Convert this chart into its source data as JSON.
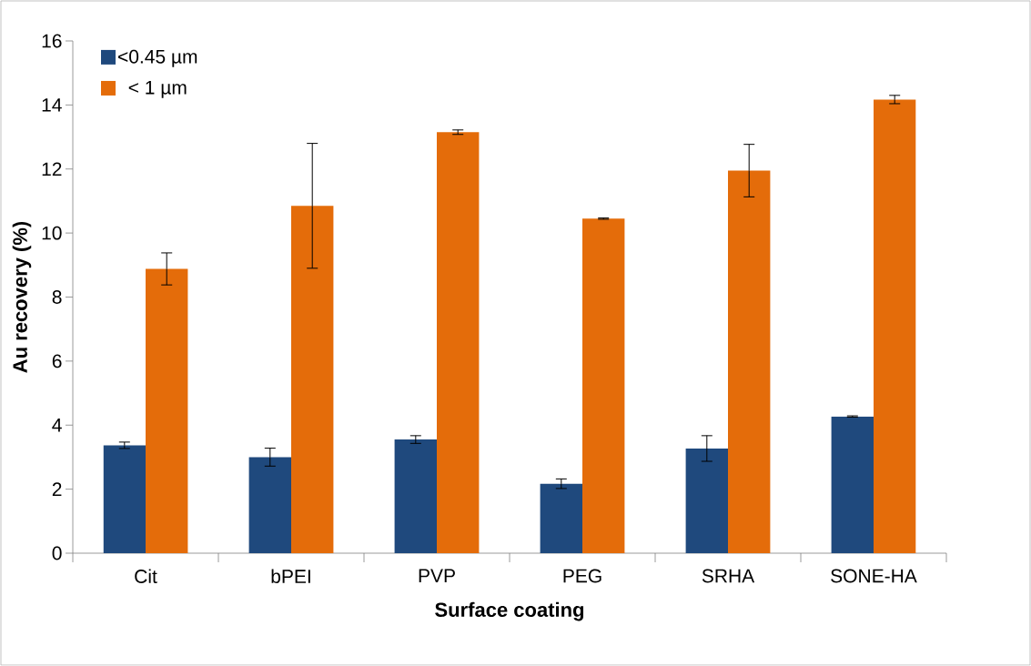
{
  "chart_data": {
    "type": "bar",
    "xlabel": "Surface coating",
    "ylabel": "Au recovery (%)",
    "categories": [
      "Cit",
      "bPEI",
      "PVP",
      "PEG",
      "SRHA",
      "SONE-HA"
    ],
    "series": [
      {
        "name": "<0.45 µm",
        "color": "#1f497d",
        "values": [
          3.37,
          3.0,
          3.55,
          2.17,
          3.27,
          4.27
        ],
        "errors": [
          0.1,
          0.28,
          0.12,
          0.15,
          0.4,
          0.02
        ]
      },
      {
        "name": "< 1 µm",
        "color": "#e46c0a",
        "values": [
          8.88,
          10.85,
          13.15,
          10.45,
          11.95,
          14.17
        ],
        "errors": [
          0.5,
          1.95,
          0.07,
          0.02,
          0.82,
          0.13
        ]
      }
    ],
    "ylim": [
      0,
      16
    ],
    "yticks": [
      0,
      2,
      4,
      6,
      8,
      10,
      12,
      14,
      16
    ],
    "grid": false,
    "legend": "top left"
  }
}
